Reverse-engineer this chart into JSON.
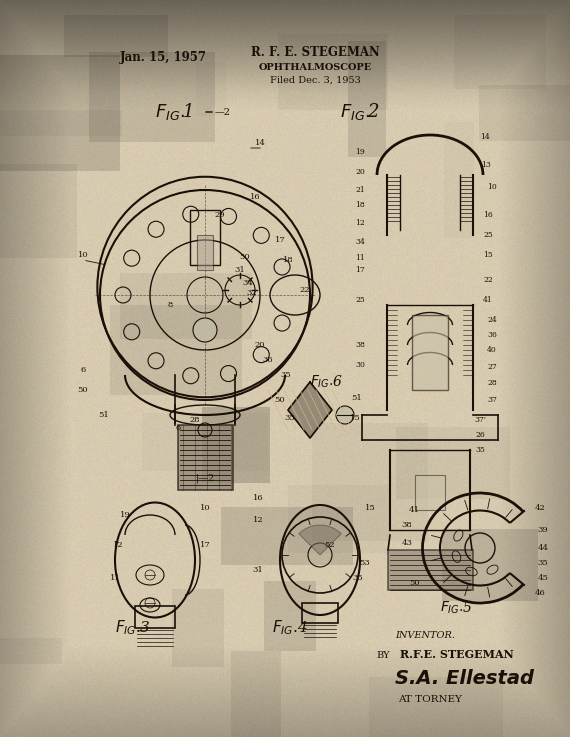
{
  "bg_color_top": "#d4c9a8",
  "bg_color_mid": "#cfc3a0",
  "bg_color_bot": "#b8a878",
  "paper_color": "#d6cab0",
  "text_color": "#1a1008",
  "line_color": "#1a1008",
  "date_text": "Jan. 15, 1957",
  "inventor_name": "R. F. E. STEGEMAN",
  "patent_title": "OPHTHALMOSCOPE",
  "filed_text": "Filed Dec. 3, 1953",
  "inventor_label": "INVENTOR.",
  "by_text": "BY",
  "inventor_sig_name": "R.F.E. STEGEMAN",
  "attorney_sig": "S.A. Ellestad",
  "attorney_label": "AT TORNEY",
  "fig1_label": "FIG.1",
  "fig2_label": "FIG. 2",
  "fig3_label": "FIG.3",
  "fig4_label": "FIG.4",
  "fig5_label": "FIG.5",
  "fig6_label": "FIG.6"
}
